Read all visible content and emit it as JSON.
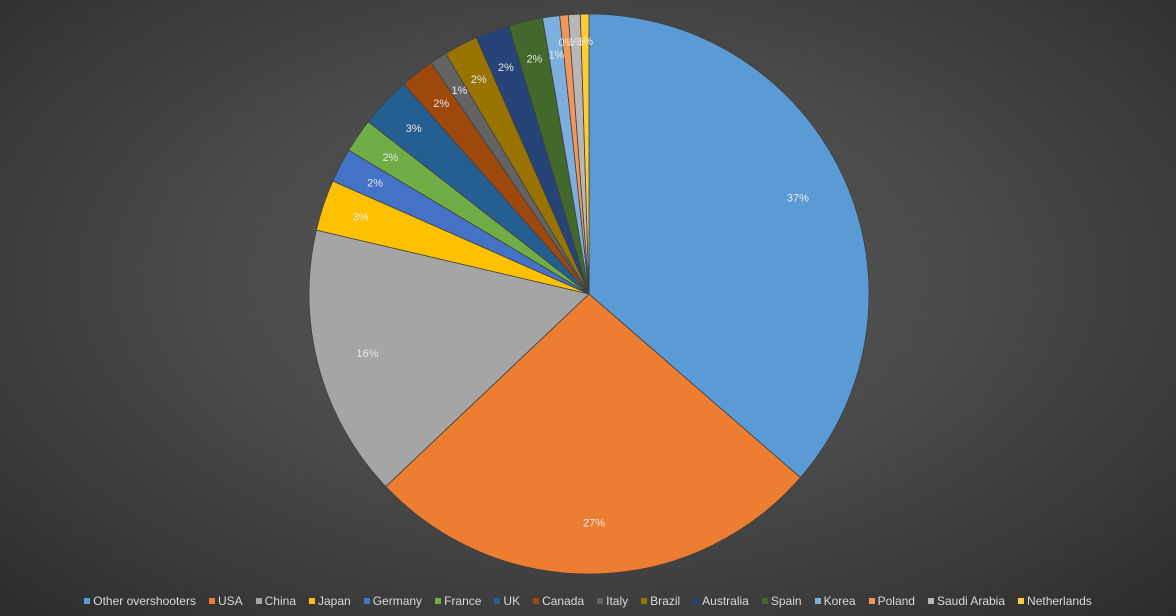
{
  "chart_data": {
    "type": "pie",
    "title": "",
    "legend_position": "bottom",
    "slices": [
      {
        "name": "Other overshooters",
        "value": 37,
        "label": "37%",
        "color": "#5b9bd5"
      },
      {
        "name": "USA",
        "value": 27,
        "label": "27%",
        "color": "#ed7d31"
      },
      {
        "name": "China",
        "value": 16,
        "label": "16%",
        "color": "#a5a5a5"
      },
      {
        "name": "Japan",
        "value": 3,
        "label": "3%",
        "color": "#ffc000"
      },
      {
        "name": "Germany",
        "value": 2,
        "label": "2%",
        "color": "#4472c4"
      },
      {
        "name": "France",
        "value": 2,
        "label": "2%",
        "color": "#70ad47"
      },
      {
        "name": "UK",
        "value": 3,
        "label": "3%",
        "color": "#255e91"
      },
      {
        "name": "Canada",
        "value": 2,
        "label": "2%",
        "color": "#9e480e"
      },
      {
        "name": "Italy",
        "value": 1,
        "label": "1%",
        "color": "#636363"
      },
      {
        "name": "Brazil",
        "value": 2,
        "label": "2%",
        "color": "#997300"
      },
      {
        "name": "Australia",
        "value": 2,
        "label": "2%",
        "color": "#264478"
      },
      {
        "name": "Spain",
        "value": 2,
        "label": "2%",
        "color": "#43682b"
      },
      {
        "name": "Korea",
        "value": 1,
        "label": "1%",
        "color": "#7cafdd"
      },
      {
        "name": "Poland",
        "value": 0.5,
        "label": "0%",
        "color": "#f1975a"
      },
      {
        "name": "Saudi Arabia",
        "value": 0.7,
        "label": "1%",
        "color": "#b7b7b7"
      },
      {
        "name": "Netherlands",
        "value": 0.5,
        "label": "1%",
        "color": "#ffcd33"
      }
    ]
  }
}
